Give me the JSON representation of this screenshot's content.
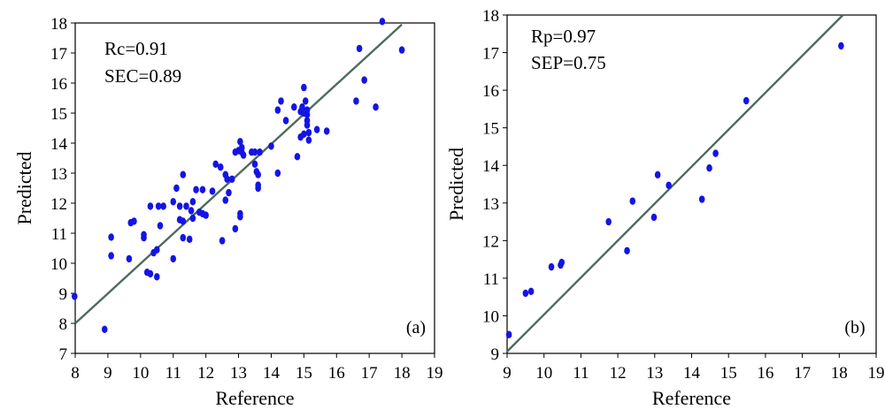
{
  "chart_data": [
    {
      "type": "scatter",
      "panel_label": "(a)",
      "xlabel": "Reference",
      "ylabel": "Predicted",
      "xlim": [
        8,
        19
      ],
      "ylim": [
        7,
        18
      ],
      "xticks": [
        "8",
        "9",
        "10",
        "11",
        "12",
        "13",
        "14",
        "15",
        "16",
        "17",
        "18",
        "19"
      ],
      "yticks": [
        "7",
        "8",
        "9",
        "10",
        "11",
        "12",
        "13",
        "14",
        "15",
        "16",
        "17",
        "18"
      ],
      "annotations": [
        "Rc=0.91",
        "SEC=0.89"
      ],
      "fit_line": {
        "x": [
          8,
          18
        ],
        "y": [
          8,
          17.95
        ]
      },
      "point_color": "#1414e6",
      "line_color": "#4d6b5e",
      "points": [
        [
          7.98,
          8.9
        ],
        [
          8.9,
          7.8
        ],
        [
          9.1,
          10.87
        ],
        [
          9.1,
          10.25
        ],
        [
          9.65,
          10.15
        ],
        [
          9.7,
          11.35
        ],
        [
          9.8,
          11.4
        ],
        [
          10.1,
          10.95
        ],
        [
          10.1,
          10.85
        ],
        [
          10.2,
          9.7
        ],
        [
          10.3,
          9.65
        ],
        [
          10.3,
          11.9
        ],
        [
          10.4,
          10.35
        ],
        [
          10.5,
          10.45
        ],
        [
          10.5,
          9.55
        ],
        [
          10.55,
          11.9
        ],
        [
          10.6,
          11.25
        ],
        [
          10.7,
          11.9
        ],
        [
          11.0,
          10.15
        ],
        [
          11.0,
          12.05
        ],
        [
          11.1,
          12.5
        ],
        [
          11.2,
          11.9
        ],
        [
          11.2,
          11.45
        ],
        [
          11.3,
          11.4
        ],
        [
          11.3,
          12.95
        ],
        [
          11.3,
          10.85
        ],
        [
          11.4,
          11.9
        ],
        [
          11.5,
          10.8
        ],
        [
          11.55,
          11.75
        ],
        [
          11.6,
          12.05
        ],
        [
          11.6,
          11.5
        ],
        [
          11.7,
          12.45
        ],
        [
          11.8,
          11.7
        ],
        [
          11.9,
          12.45
        ],
        [
          11.9,
          11.65
        ],
        [
          12.0,
          11.6
        ],
        [
          12.2,
          12.4
        ],
        [
          12.3,
          13.3
        ],
        [
          12.45,
          13.2
        ],
        [
          12.5,
          10.75
        ],
        [
          12.6,
          12.95
        ],
        [
          12.6,
          12.1
        ],
        [
          12.65,
          12.8
        ],
        [
          12.7,
          12.35
        ],
        [
          12.8,
          12.8
        ],
        [
          12.9,
          11.15
        ],
        [
          12.9,
          13.7
        ],
        [
          13.0,
          13.75
        ],
        [
          13.05,
          11.65
        ],
        [
          13.05,
          11.55
        ],
        [
          13.05,
          14.05
        ],
        [
          13.05,
          13.75
        ],
        [
          13.1,
          13.85
        ],
        [
          13.1,
          13.7
        ],
        [
          13.15,
          13.6
        ],
        [
          13.4,
          13.7
        ],
        [
          13.5,
          13.7
        ],
        [
          13.5,
          13.3
        ],
        [
          13.55,
          13.05
        ],
        [
          13.6,
          12.95
        ],
        [
          13.6,
          12.6
        ],
        [
          13.6,
          12.5
        ],
        [
          13.65,
          13.7
        ],
        [
          14.0,
          13.9
        ],
        [
          14.2,
          15.1
        ],
        [
          14.2,
          13.0
        ],
        [
          14.3,
          15.4
        ],
        [
          14.45,
          14.75
        ],
        [
          14.7,
          15.2
        ],
        [
          14.8,
          13.55
        ],
        [
          14.9,
          14.2
        ],
        [
          14.9,
          15.05
        ],
        [
          14.95,
          15.2
        ],
        [
          15.0,
          15.85
        ],
        [
          15.0,
          15.0
        ],
        [
          15.0,
          14.3
        ],
        [
          15.05,
          15.4
        ],
        [
          15.1,
          15.1
        ],
        [
          15.1,
          14.95
        ],
        [
          15.1,
          14.75
        ],
        [
          15.1,
          14.6
        ],
        [
          15.15,
          14.35
        ],
        [
          15.15,
          14.1
        ],
        [
          15.4,
          14.45
        ],
        [
          15.7,
          14.4
        ],
        [
          16.6,
          15.4
        ],
        [
          16.7,
          17.15
        ],
        [
          16.85,
          16.1
        ],
        [
          17.2,
          15.2
        ],
        [
          17.4,
          18.05
        ],
        [
          18.0,
          17.1
        ]
      ]
    },
    {
      "type": "scatter",
      "panel_label": "(b)",
      "xlabel": "Reference",
      "ylabel": "Predicted",
      "xlim": [
        9,
        19
      ],
      "ylim": [
        9,
        18
      ],
      "xticks": [
        "9",
        "10",
        "11",
        "12",
        "13",
        "14",
        "15",
        "16",
        "17",
        "18",
        "19"
      ],
      "yticks": [
        "9",
        "10",
        "11",
        "12",
        "13",
        "14",
        "15",
        "16",
        "17",
        "18"
      ],
      "annotations": [
        "Rp=0.97",
        "SEP=0.75"
      ],
      "fit_line": {
        "x": [
          9,
          18.1
        ],
        "y": [
          9.05,
          18.0
        ]
      },
      "point_color": "#1414e6",
      "line_color": "#4d6b5e",
      "points": [
        [
          9.05,
          9.5
        ],
        [
          9.5,
          10.6
        ],
        [
          9.65,
          10.65
        ],
        [
          10.2,
          11.3
        ],
        [
          10.45,
          11.35
        ],
        [
          10.48,
          11.42
        ],
        [
          11.75,
          12.5
        ],
        [
          12.25,
          11.73
        ],
        [
          12.4,
          13.05
        ],
        [
          12.98,
          12.62
        ],
        [
          13.08,
          13.75
        ],
        [
          13.38,
          13.47
        ],
        [
          14.28,
          13.1
        ],
        [
          14.48,
          13.93
        ],
        [
          14.65,
          14.32
        ],
        [
          15.48,
          15.72
        ],
        [
          18.05,
          17.18
        ]
      ]
    }
  ]
}
